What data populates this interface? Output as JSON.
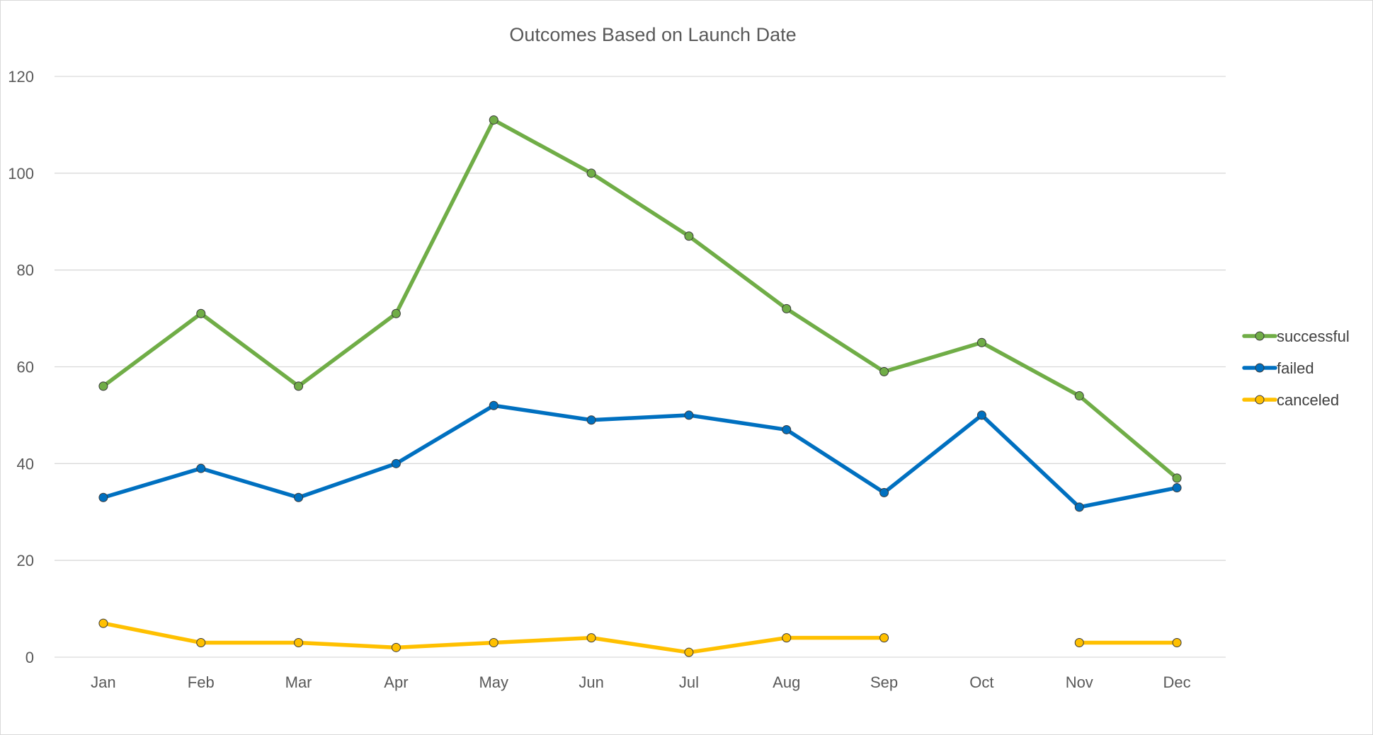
{
  "chart_data": {
    "type": "line",
    "title": "Outcomes Based on Launch Date",
    "xlabel": "",
    "ylabel": "",
    "categories": [
      "Jan",
      "Feb",
      "Mar",
      "Apr",
      "May",
      "Jun",
      "Jul",
      "Aug",
      "Sep",
      "Oct",
      "Nov",
      "Dec"
    ],
    "ylim": [
      0,
      120
    ],
    "yticks": [
      0,
      20,
      40,
      60,
      80,
      100,
      120
    ],
    "grid": true,
    "legend_position": "right",
    "series": [
      {
        "name": "successful",
        "color": "#70ad47",
        "values": [
          56,
          71,
          56,
          71,
          111,
          100,
          87,
          72,
          59,
          65,
          54,
          37
        ]
      },
      {
        "name": "failed",
        "color": "#0070c0",
        "values": [
          33,
          39,
          33,
          40,
          52,
          49,
          50,
          47,
          34,
          50,
          31,
          35
        ]
      },
      {
        "name": "canceled",
        "color": "#ffc000",
        "values": [
          7,
          3,
          3,
          2,
          3,
          4,
          1,
          4,
          4,
          null,
          3,
          3
        ]
      }
    ]
  }
}
